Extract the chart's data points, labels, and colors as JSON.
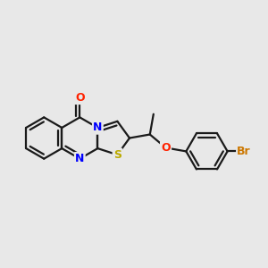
{
  "background_color": "#e8e8e8",
  "bond_color": "#1a1a1a",
  "bond_width": 1.6,
  "atom_colors": {
    "N": "#0000ff",
    "O": "#ff2200",
    "S": "#bbaa00",
    "Br": "#cc7700",
    "C": "#1a1a1a"
  },
  "figsize": [
    3.0,
    3.0
  ],
  "dpi": 100
}
